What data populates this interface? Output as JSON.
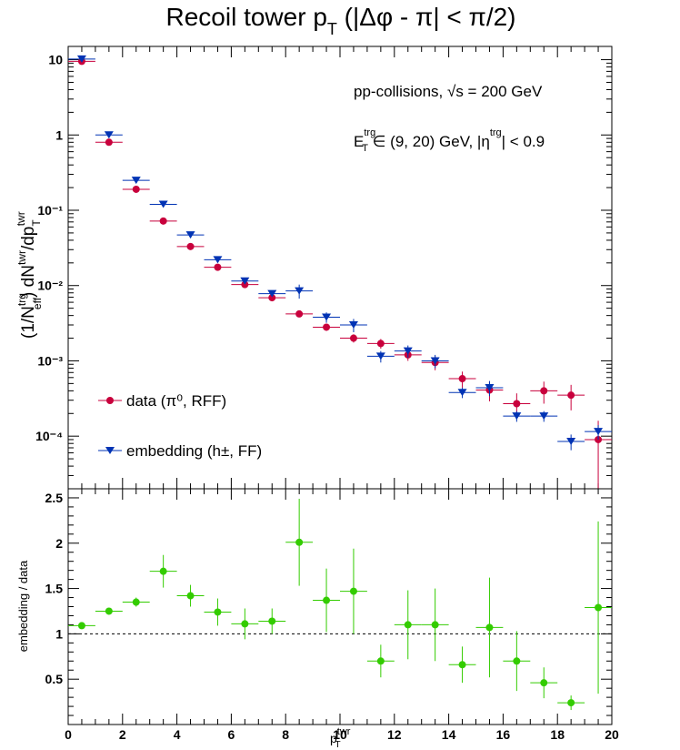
{
  "title": {
    "main": "Recoil tower p",
    "sub": "T",
    "tail": " (|Δφ - π| < π/2)"
  },
  "annotations": {
    "collisions": "pp-collisions, √s = 200 GeV",
    "et_base": "E",
    "et_sup": "trg",
    "et_sub": "T",
    "et_mid": " ∈ (9, 20) GeV, |η",
    "eta_sup": "trg",
    "et_end": "| < 0.9"
  },
  "top_ylabel": {
    "a": "(1/N",
    "a_sup": "trg",
    "a_sub": "eff",
    "b": ") dN",
    "b_sup": "twr",
    "c": "/dp",
    "c_sub": "T",
    "c_sup": "twr"
  },
  "bottom_ylabel": "embedding / data",
  "xlabel": {
    "base": "p",
    "sup": "twr",
    "sub": "T"
  },
  "legend": {
    "data": "data (π⁰, RFF)",
    "embedding": "embedding (h±, FF)"
  },
  "colors": {
    "data": "#c8003c",
    "embedding": "#0033b4",
    "ratio": "#33cc00"
  },
  "chart_data": [
    {
      "type": "scatter",
      "scale": "log",
      "xlim": [
        0,
        20
      ],
      "ylim": [
        2e-05,
        15
      ],
      "x_ticks": [],
      "y_ticks": [
        "10",
        "1",
        "10⁻¹",
        "10⁻²",
        "10⁻³",
        "10⁻⁴"
      ],
      "x": [
        0.5,
        1.5,
        2.5,
        3.5,
        4.5,
        5.5,
        6.5,
        7.5,
        8.5,
        9.5,
        10.5,
        11.5,
        12.5,
        13.5,
        14.5,
        15.5,
        16.5,
        17.5,
        18.5,
        19.5
      ],
      "x_err": 0.5,
      "series": [
        {
          "name": "data (π⁰, RFF)",
          "marker": "circle",
          "values": [
            9.5,
            0.8,
            0.19,
            0.072,
            0.033,
            0.0175,
            0.0103,
            0.0069,
            0.0042,
            0.0028,
            0.002,
            0.0017,
            0.0012,
            0.00095,
            0.00058,
            0.00041,
            0.00027,
            0.0004,
            0.00035,
            9e-05
          ],
          "errors": [
            0.3,
            0.03,
            0.008,
            0.003,
            0.0015,
            0.0008,
            0.0005,
            0.0004,
            0.0003,
            0.0003,
            0.00025,
            0.00025,
            0.0002,
            0.0002,
            0.00014,
            0.00012,
            0.0001,
            0.00013,
            0.00013,
            7e-05
          ]
        },
        {
          "name": "embedding (h±, FF)",
          "marker": "triangle-down",
          "values": [
            10.2,
            1.0,
            0.25,
            0.12,
            0.047,
            0.022,
            0.0115,
            0.0078,
            0.0085,
            0.0038,
            0.003,
            0.00115,
            0.00135,
            0.001,
            0.00038,
            0.00044,
            0.000185,
            0.000185,
            8.5e-05,
            0.000115
          ],
          "errors": [
            0.3,
            0.03,
            0.01,
            0.004,
            0.002,
            0.001,
            0.0007,
            0.0005,
            0.0018,
            0.0006,
            0.0006,
            0.0002,
            0.00025,
            0.0002,
            6e-05,
            0.0001,
            3e-05,
            3e-05,
            2e-05,
            2.5e-05
          ]
        }
      ]
    },
    {
      "type": "scatter",
      "xlim": [
        0,
        20
      ],
      "ylim": [
        0,
        2.6
      ],
      "x_ticks": [
        "0",
        "2",
        "4",
        "6",
        "8",
        "10",
        "12",
        "14",
        "16",
        "18",
        "20"
      ],
      "y_ticks": [
        "0.5",
        "1",
        "1.5",
        "2",
        "2.5"
      ],
      "reference_line": 1,
      "x": [
        0.5,
        1.5,
        2.5,
        3.5,
        4.5,
        5.5,
        6.5,
        7.5,
        8.5,
        9.5,
        10.5,
        11.5,
        12.5,
        13.5,
        14.5,
        15.5,
        16.5,
        17.5,
        18.5,
        19.5
      ],
      "x_err": 0.5,
      "series": [
        {
          "name": "embedding / data",
          "marker": "circle",
          "values": [
            1.09,
            1.25,
            1.35,
            1.69,
            1.42,
            1.24,
            1.11,
            1.14,
            2.01,
            1.37,
            1.47,
            0.7,
            1.1,
            1.1,
            0.66,
            1.07,
            0.7,
            0.46,
            0.24,
            1.29
          ],
          "errors": [
            0.03,
            0.03,
            0.05,
            0.18,
            0.12,
            0.15,
            0.17,
            0.14,
            0.48,
            0.35,
            0.47,
            0.18,
            0.38,
            0.4,
            0.2,
            0.55,
            0.33,
            0.17,
            0.08,
            0.95
          ]
        }
      ]
    }
  ]
}
